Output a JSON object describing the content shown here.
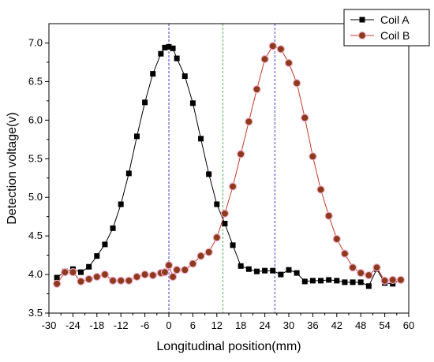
{
  "chart_data": {
    "type": "scatter",
    "title": "",
    "xlabel": "Longitudinal position(mm)",
    "ylabel": "Detection voltage(v)",
    "xlim": [
      -30,
      60
    ],
    "ylim": [
      3.5,
      7.25
    ],
    "xticks": [
      -30,
      -24,
      -18,
      -12,
      -6,
      0,
      6,
      12,
      18,
      24,
      30,
      36,
      42,
      48,
      54,
      60
    ],
    "yticks": [
      3.5,
      4.0,
      4.5,
      5.0,
      5.5,
      6.0,
      6.5,
      7.0
    ],
    "grid": false,
    "legend_position": "top-right",
    "reference_lines": [
      {
        "x": 0,
        "color": "#3b3bd6"
      },
      {
        "x": 13.5,
        "color": "#4caf50"
      },
      {
        "x": 26.5,
        "color": "#3b3bd6"
      }
    ],
    "series": [
      {
        "name": "Coil A",
        "marker": "square",
        "color": "#000000",
        "line_color": "#000000",
        "points": [
          [
            -28,
            3.96
          ],
          [
            -26,
            4.04
          ],
          [
            -24,
            4.07
          ],
          [
            -22,
            4.03
          ],
          [
            -20,
            4.1
          ],
          [
            -18,
            4.24
          ],
          [
            -16,
            4.39
          ],
          [
            -14,
            4.6
          ],
          [
            -12,
            4.91
          ],
          [
            -10,
            5.31
          ],
          [
            -8,
            5.79
          ],
          [
            -6,
            6.23
          ],
          [
            -4,
            6.6
          ],
          [
            -2,
            6.86
          ],
          [
            -1,
            6.94
          ],
          [
            0,
            6.95
          ],
          [
            1,
            6.93
          ],
          [
            2,
            6.8
          ],
          [
            4,
            6.57
          ],
          [
            6,
            6.22
          ],
          [
            8,
            5.76
          ],
          [
            10,
            5.3
          ],
          [
            12,
            4.91
          ],
          [
            14,
            4.66
          ],
          [
            16,
            4.38
          ],
          [
            18,
            4.11
          ],
          [
            20,
            4.07
          ],
          [
            22,
            4.04
          ],
          [
            24,
            4.05
          ],
          [
            26,
            4.05
          ],
          [
            28,
            4.0
          ],
          [
            30,
            4.06
          ],
          [
            32,
            4.02
          ],
          [
            34,
            3.91
          ],
          [
            36,
            3.92
          ],
          [
            38,
            3.92
          ],
          [
            40,
            3.93
          ],
          [
            42,
            3.92
          ],
          [
            44,
            3.9
          ],
          [
            46,
            3.9
          ],
          [
            48,
            3.9
          ],
          [
            50,
            3.85
          ],
          [
            52,
            4.07
          ],
          [
            54,
            3.89
          ],
          [
            56,
            3.88
          ],
          [
            58,
            3.93
          ]
        ]
      },
      {
        "name": "Coil B",
        "marker": "circle",
        "color": "#8b3a1a",
        "line_color": "#c0392b",
        "points": [
          [
            -28,
            3.88
          ],
          [
            -26,
            4.03
          ],
          [
            -24,
            4.03
          ],
          [
            -22,
            3.91
          ],
          [
            -20,
            3.94
          ],
          [
            -18,
            3.97
          ],
          [
            -16,
            4.0
          ],
          [
            -14,
            3.92
          ],
          [
            -12,
            3.92
          ],
          [
            -10,
            3.92
          ],
          [
            -8,
            3.97
          ],
          [
            -6,
            4.0
          ],
          [
            -4,
            3.99
          ],
          [
            -2,
            4.02
          ],
          [
            -1,
            4.03
          ],
          [
            0,
            4.12
          ],
          [
            1,
            3.97
          ],
          [
            2,
            4.06
          ],
          [
            4,
            4.06
          ],
          [
            6,
            4.14
          ],
          [
            8,
            4.24
          ],
          [
            10,
            4.29
          ],
          [
            12,
            4.48
          ],
          [
            14,
            4.79
          ],
          [
            16,
            5.14
          ],
          [
            18,
            5.56
          ],
          [
            20,
            5.98
          ],
          [
            22,
            6.4
          ],
          [
            24,
            6.79
          ],
          [
            26,
            6.96
          ],
          [
            28,
            6.92
          ],
          [
            30,
            6.74
          ],
          [
            32,
            6.48
          ],
          [
            34,
            6.03
          ],
          [
            36,
            5.53
          ],
          [
            38,
            5.1
          ],
          [
            40,
            4.76
          ],
          [
            42,
            4.46
          ],
          [
            44,
            4.27
          ],
          [
            46,
            4.09
          ],
          [
            48,
            4.02
          ],
          [
            50,
            3.99
          ],
          [
            52,
            4.09
          ],
          [
            54,
            3.92
          ],
          [
            56,
            3.93
          ],
          [
            58,
            3.93
          ]
        ]
      }
    ]
  }
}
